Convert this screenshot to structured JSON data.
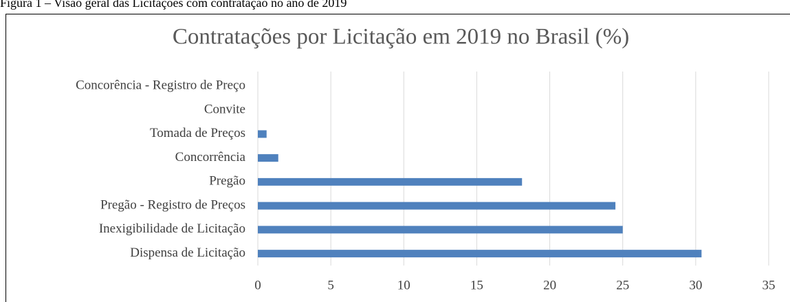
{
  "caption": "Figura 1 – Visão geral das Licitações com contratação no ano de 2019",
  "chart_data": {
    "type": "bar",
    "orientation": "horizontal",
    "title": "Contratações por Licitação em 2019 no Brasil (%)",
    "categories": [
      "Dispensa de Licitação",
      "Inexigibilidade de Licitação",
      "Pregão - Registro de Preços",
      "Pregão",
      "Concorrência",
      "Tomada de Preços",
      "Convite",
      "Concorência - Registro de Preço"
    ],
    "values": [
      30.4,
      25.0,
      24.5,
      18.1,
      1.4,
      0.6,
      0,
      0
    ],
    "color": "#4f81bd",
    "xlim": [
      0,
      35
    ],
    "xticks": [
      0,
      5,
      10,
      15,
      20,
      25,
      30,
      35
    ],
    "grid": true
  }
}
